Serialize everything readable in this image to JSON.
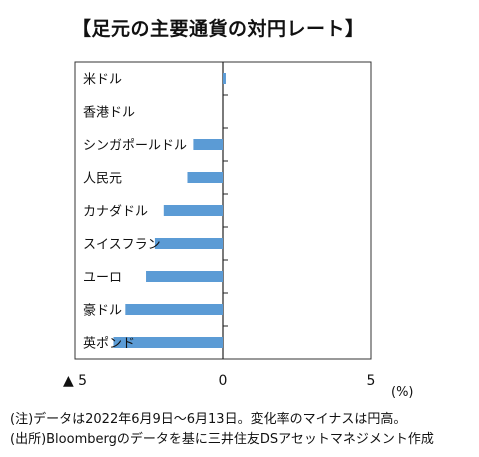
{
  "title": "【足元の主要通貨の対円レート】",
  "chart_data": {
    "type": "bar",
    "orientation": "horizontal",
    "categories": [
      "米ドル",
      "香港ドル",
      "シンガポールドル",
      "人民元",
      "カナダドル",
      "スイスフラン",
      "ユーロ",
      "豪ドル",
      "英ポンド"
    ],
    "values": [
      0.1,
      0.0,
      -1.0,
      -1.2,
      -2.0,
      -2.3,
      -2.6,
      -3.3,
      -3.7
    ],
    "xlim": [
      -5,
      5
    ],
    "x_ticks": [
      -5,
      0,
      5
    ],
    "x_tick_labels": [
      "▲ 5",
      "0",
      "5"
    ],
    "xlabel": "(%)",
    "bar_color": "#5b9bd5",
    "grid": false
  },
  "notes": {
    "note1": "(注)データは2022年6月9日～6月13日。変化率のマイナスは円高。",
    "note2": "(出所)Bloombergのデータを基に三井住友DSアセットマネジメント作成"
  }
}
